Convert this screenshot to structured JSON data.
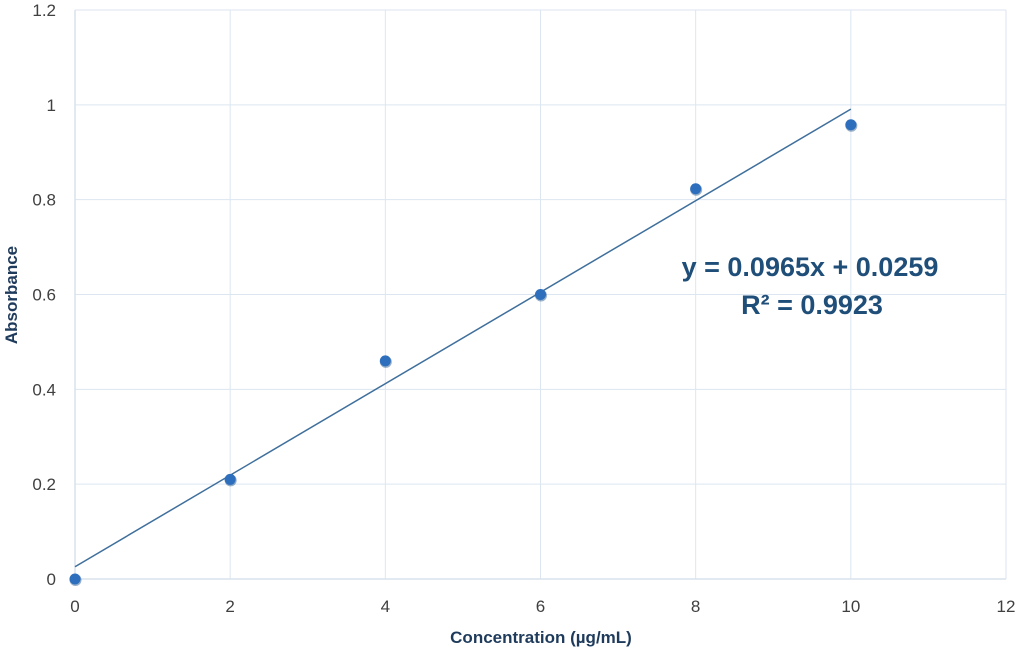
{
  "chart_data": {
    "type": "scatter",
    "xlabel": "Concentration (µg/mL)",
    "ylabel": "Absorbance",
    "xlim": [
      0,
      12
    ],
    "ylim": [
      0,
      1.2
    ],
    "x_ticks": [
      "0",
      "2",
      "4",
      "6",
      "8",
      "10",
      "12"
    ],
    "y_ticks": [
      "0",
      "0.2",
      "0.4",
      "0.6",
      "0.8",
      "1",
      "1.2"
    ],
    "grid": true,
    "series": [
      {
        "x": [
          0,
          2,
          4,
          6,
          8,
          10
        ],
        "y": [
          0.0,
          0.21,
          0.46,
          0.6,
          0.823,
          0.958
        ]
      }
    ],
    "trendline": {
      "slope": 0.0965,
      "intercept": 0.0259,
      "x_range": [
        0,
        10
      ]
    },
    "annotations": [
      "y = 0.0965x + 0.0259",
      "R² = 0.9923"
    ],
    "colors": {
      "points": "#2e6fbd",
      "trendline": "#3f6f9c",
      "grid": "#dce6f1",
      "text": "#1f4e79"
    }
  }
}
